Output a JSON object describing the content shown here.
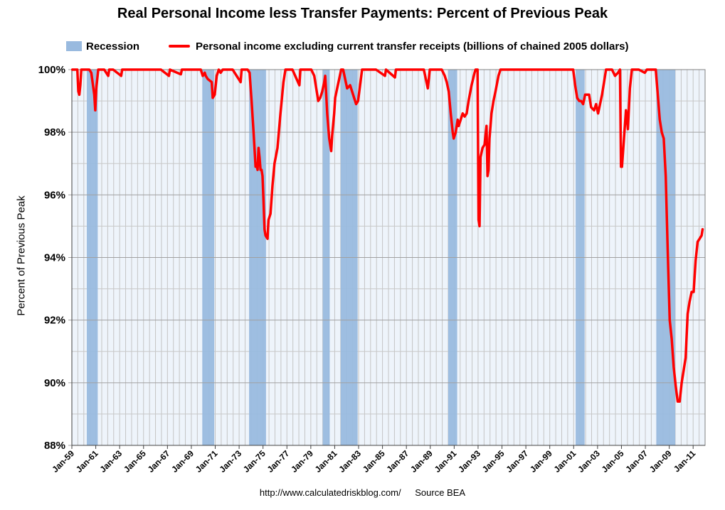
{
  "chart_data": {
    "type": "line",
    "title": "Real Personal Income less Transfer Payments: Percent of Previous Peak",
    "ylabel": "Percent of Previous Peak",
    "xlabel": "",
    "ylim": [
      88,
      100
    ],
    "xlim": [
      "1959-01",
      "2011-12"
    ],
    "y_ticks": [
      "100%",
      "98%",
      "96%",
      "94%",
      "92%",
      "90%",
      "88%"
    ],
    "y_tick_values": [
      100,
      98,
      96,
      94,
      92,
      90,
      88
    ],
    "x_ticks": [
      "Jan-59",
      "Jan-61",
      "Jan-63",
      "Jan-65",
      "Jan-67",
      "Jan-69",
      "Jan-71",
      "Jan-73",
      "Jan-75",
      "Jan-77",
      "Jan-79",
      "Jan-81",
      "Jan-83",
      "Jan-85",
      "Jan-87",
      "Jan-89",
      "Jan-91",
      "Jan-93",
      "Jan-95",
      "Jan-97",
      "Jan-99",
      "Jan-01",
      "Jan-03",
      "Jan-05",
      "Jan-07",
      "Jan-09",
      "Jan-11"
    ],
    "x_tick_dates": [
      "1959-01",
      "1961-01",
      "1963-01",
      "1965-01",
      "1967-01",
      "1969-01",
      "1971-01",
      "1973-01",
      "1975-01",
      "1977-01",
      "1979-01",
      "1981-01",
      "1983-01",
      "1985-01",
      "1987-01",
      "1989-01",
      "1991-01",
      "1993-01",
      "1995-01",
      "1997-01",
      "1999-01",
      "2001-01",
      "2003-01",
      "2005-01",
      "2007-01",
      "2009-01",
      "2011-01"
    ],
    "grid": true,
    "legend_placement": "top",
    "colors": {
      "recession": "#99badf",
      "line": "#ff0000",
      "plot_bg": "#eef4fb",
      "grid": "#b0b0b0"
    },
    "recessions": [
      {
        "start": "1960-04",
        "end": "1961-02"
      },
      {
        "start": "1969-12",
        "end": "1970-11"
      },
      {
        "start": "1973-11",
        "end": "1975-03"
      },
      {
        "start": "1980-01",
        "end": "1980-07"
      },
      {
        "start": "1981-07",
        "end": "1982-11"
      },
      {
        "start": "1990-07",
        "end": "1991-03"
      },
      {
        "start": "2001-03",
        "end": "2001-11"
      },
      {
        "start": "2007-12",
        "end": "2009-06"
      }
    ],
    "series": [
      {
        "name": "Personal income excluding current transfer receipts (billions of chained 2005 dollars)",
        "points": [
          [
            "1959-01",
            100
          ],
          [
            "1959-06",
            100
          ],
          [
            "1959-07",
            99.3
          ],
          [
            "1959-08",
            99.2
          ],
          [
            "1959-09",
            99.5
          ],
          [
            "1959-10",
            100
          ],
          [
            "1960-04",
            100
          ],
          [
            "1960-06",
            100
          ],
          [
            "1960-08",
            99.9
          ],
          [
            "1960-11",
            99.2
          ],
          [
            "1960-12",
            98.7
          ],
          [
            "1961-01",
            99.4
          ],
          [
            "1961-03",
            100
          ],
          [
            "1961-06",
            100
          ],
          [
            "1961-09",
            100
          ],
          [
            "1962-01",
            99.8
          ],
          [
            "1962-02",
            100
          ],
          [
            "1962-06",
            100
          ],
          [
            "1963-02",
            99.8
          ],
          [
            "1963-03",
            100
          ],
          [
            "1964-06",
            100
          ],
          [
            "1966-06",
            100
          ],
          [
            "1967-02",
            99.8
          ],
          [
            "1967-03",
            100
          ],
          [
            "1968-02",
            99.85
          ],
          [
            "1968-03",
            100
          ],
          [
            "1969-06",
            100
          ],
          [
            "1969-10",
            100
          ],
          [
            "1969-12",
            99.8
          ],
          [
            "1970-02",
            99.9
          ],
          [
            "1970-03",
            99.8
          ],
          [
            "1970-05",
            99.7
          ],
          [
            "1970-09",
            99.6
          ],
          [
            "1970-10",
            99.1
          ],
          [
            "1970-12",
            99.2
          ],
          [
            "1971-02",
            99.8
          ],
          [
            "1971-04",
            100
          ],
          [
            "1971-06",
            99.9
          ],
          [
            "1971-08",
            100
          ],
          [
            "1972-06",
            100
          ],
          [
            "1973-02",
            99.6
          ],
          [
            "1973-03",
            100
          ],
          [
            "1973-09",
            100
          ],
          [
            "1973-11",
            99.9
          ],
          [
            "1974-01",
            99.0
          ],
          [
            "1974-03",
            98.0
          ],
          [
            "1974-05",
            96.9
          ],
          [
            "1974-06",
            97.0
          ],
          [
            "1974-07",
            96.8
          ],
          [
            "1974-08",
            97.5
          ],
          [
            "1974-09",
            97.2
          ],
          [
            "1974-10",
            96.8
          ],
          [
            "1974-11",
            96.8
          ],
          [
            "1974-12",
            96.6
          ],
          [
            "1975-01",
            95.8
          ],
          [
            "1975-02",
            94.9
          ],
          [
            "1975-03",
            94.7
          ],
          [
            "1975-05",
            94.6
          ],
          [
            "1975-06",
            95.2
          ],
          [
            "1975-08",
            95.4
          ],
          [
            "1975-10",
            96.3
          ],
          [
            "1975-12",
            97.0
          ],
          [
            "1976-03",
            97.5
          ],
          [
            "1976-06",
            98.6
          ],
          [
            "1976-09",
            99.6
          ],
          [
            "1976-11",
            100
          ],
          [
            "1977-06",
            100
          ],
          [
            "1978-01",
            99.5
          ],
          [
            "1978-02",
            100
          ],
          [
            "1978-06",
            100
          ],
          [
            "1979-01",
            100
          ],
          [
            "1979-04",
            99.8
          ],
          [
            "1979-06",
            99.4
          ],
          [
            "1979-08",
            99.0
          ],
          [
            "1979-10",
            99.1
          ],
          [
            "1979-12",
            99.3
          ],
          [
            "1980-02",
            99.6
          ],
          [
            "1980-03",
            99.8
          ],
          [
            "1980-05",
            98.6
          ],
          [
            "1980-06",
            98.2
          ],
          [
            "1980-07",
            97.8
          ],
          [
            "1980-09",
            97.4
          ],
          [
            "1980-10",
            97.9
          ],
          [
            "1980-12",
            98.6
          ],
          [
            "1981-01",
            99.1
          ],
          [
            "1981-03",
            99.4
          ],
          [
            "1981-05",
            99.7
          ],
          [
            "1981-07",
            100
          ],
          [
            "1981-09",
            100
          ],
          [
            "1981-11",
            99.7
          ],
          [
            "1982-01",
            99.4
          ],
          [
            "1982-04",
            99.5
          ],
          [
            "1982-06",
            99.3
          ],
          [
            "1982-08",
            99.1
          ],
          [
            "1982-10",
            98.9
          ],
          [
            "1982-12",
            99.0
          ],
          [
            "1983-02",
            99.5
          ],
          [
            "1983-04",
            100
          ],
          [
            "1984-06",
            100
          ],
          [
            "1985-03",
            99.8
          ],
          [
            "1985-04",
            100
          ],
          [
            "1986-01",
            99.75
          ],
          [
            "1986-02",
            100
          ],
          [
            "1987-06",
            100
          ],
          [
            "1988-06",
            100
          ],
          [
            "1988-10",
            99.4
          ],
          [
            "1988-12",
            100
          ],
          [
            "1989-06",
            100
          ],
          [
            "1989-12",
            100
          ],
          [
            "1990-03",
            99.8
          ],
          [
            "1990-05",
            99.6
          ],
          [
            "1990-07",
            99.3
          ],
          [
            "1990-09",
            98.6
          ],
          [
            "1990-11",
            98.0
          ],
          [
            "1990-12",
            97.8
          ],
          [
            "1991-02",
            98.0
          ],
          [
            "1991-04",
            98.4
          ],
          [
            "1991-05",
            98.2
          ],
          [
            "1991-07",
            98.4
          ],
          [
            "1991-09",
            98.6
          ],
          [
            "1991-11",
            98.5
          ],
          [
            "1992-01",
            98.6
          ],
          [
            "1992-03",
            99.0
          ],
          [
            "1992-06",
            99.5
          ],
          [
            "1992-09",
            99.9
          ],
          [
            "1992-10",
            100
          ],
          [
            "1992-12",
            100
          ],
          [
            "1993-01",
            95.2
          ],
          [
            "1993-02",
            95.0
          ],
          [
            "1993-03",
            97.2
          ],
          [
            "1993-05",
            97.5
          ],
          [
            "1993-07",
            97.6
          ],
          [
            "1993-09",
            98.2
          ],
          [
            "1993-10",
            96.6
          ],
          [
            "1993-11",
            96.8
          ],
          [
            "1993-12",
            97.8
          ],
          [
            "1994-02",
            98.6
          ],
          [
            "1994-04",
            99.0
          ],
          [
            "1994-06",
            99.3
          ],
          [
            "1994-09",
            99.8
          ],
          [
            "1994-11",
            100
          ],
          [
            "1995-06",
            100
          ],
          [
            "1997-06",
            100
          ],
          [
            "1999-06",
            100
          ],
          [
            "2000-06",
            100
          ],
          [
            "2000-12",
            100
          ],
          [
            "2001-02",
            99.5
          ],
          [
            "2001-04",
            99.1
          ],
          [
            "2001-06",
            99.0
          ],
          [
            "2001-08",
            99.0
          ],
          [
            "2001-10",
            98.9
          ],
          [
            "2001-12",
            99.2
          ],
          [
            "2002-02",
            99.2
          ],
          [
            "2002-04",
            99.2
          ],
          [
            "2002-06",
            98.8
          ],
          [
            "2002-09",
            98.7
          ],
          [
            "2002-11",
            98.9
          ],
          [
            "2003-01",
            98.6
          ],
          [
            "2003-03",
            98.9
          ],
          [
            "2003-05",
            99.2
          ],
          [
            "2003-07",
            99.6
          ],
          [
            "2003-09",
            100
          ],
          [
            "2004-03",
            100
          ],
          [
            "2004-06",
            99.8
          ],
          [
            "2004-09",
            99.9
          ],
          [
            "2004-11",
            100
          ],
          [
            "2004-12",
            96.9
          ],
          [
            "2005-01",
            96.9
          ],
          [
            "2005-03",
            97.8
          ],
          [
            "2005-05",
            98.7
          ],
          [
            "2005-06",
            98.5
          ],
          [
            "2005-07",
            98.1
          ],
          [
            "2005-09",
            99.4
          ],
          [
            "2005-11",
            100
          ],
          [
            "2006-06",
            100
          ],
          [
            "2006-12",
            99.9
          ],
          [
            "2007-02",
            100
          ],
          [
            "2007-08",
            100
          ],
          [
            "2007-11",
            100
          ],
          [
            "2008-01",
            99.2
          ],
          [
            "2008-03",
            98.4
          ],
          [
            "2008-05",
            98.0
          ],
          [
            "2008-06",
            97.9
          ],
          [
            "2008-07",
            97.8
          ],
          [
            "2008-09",
            96.6
          ],
          [
            "2008-11",
            94.2
          ],
          [
            "2009-01",
            92.0
          ],
          [
            "2009-03",
            91.4
          ],
          [
            "2009-05",
            90.5
          ],
          [
            "2009-07",
            89.9
          ],
          [
            "2009-09",
            89.4
          ],
          [
            "2009-11",
            89.4
          ],
          [
            "2010-01",
            90.0
          ],
          [
            "2010-03",
            90.4
          ],
          [
            "2010-05",
            90.8
          ],
          [
            "2010-06",
            91.5
          ],
          [
            "2010-07",
            92.2
          ],
          [
            "2010-09",
            92.6
          ],
          [
            "2010-11",
            92.9
          ],
          [
            "2011-01",
            92.9
          ],
          [
            "2011-03",
            93.9
          ],
          [
            "2011-05",
            94.5
          ],
          [
            "2011-07",
            94.6
          ],
          [
            "2011-09",
            94.7
          ],
          [
            "2011-10",
            94.9
          ]
        ]
      }
    ]
  },
  "legend": {
    "recession_label": "Recession",
    "series_label": "Personal income excluding current transfer receipts (billions of chained 2005 dollars)"
  },
  "footer": {
    "url": "http://www.calculatedriskblog.com/",
    "source": "Source BEA"
  }
}
